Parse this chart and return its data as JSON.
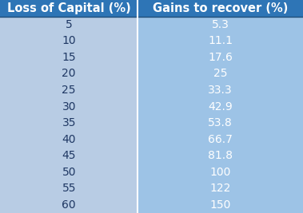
{
  "col1_header": "Loss of Capital (%)",
  "col2_header": "Gains to recover (%)",
  "col1_values": [
    "5",
    "10",
    "15",
    "20",
    "25",
    "30",
    "35",
    "40",
    "45",
    "50",
    "55",
    "60"
  ],
  "col2_values": [
    "5.3",
    "11.1",
    "17.6",
    "25",
    "33.3",
    "42.9",
    "53.8",
    "66.7",
    "81.8",
    "100",
    "122",
    "150"
  ],
  "header_bg": "#2e75b6",
  "col1_bg": "#b8cce4",
  "col2_bg": "#9dc3e6",
  "header_text_color": "#ffffff",
  "col1_text_color": "#1f3864",
  "col2_text_color": "#ffffff",
  "header_fontsize": 10.5,
  "cell_fontsize": 10,
  "col_split": 0.455,
  "fig_bg": "#b8cce4"
}
